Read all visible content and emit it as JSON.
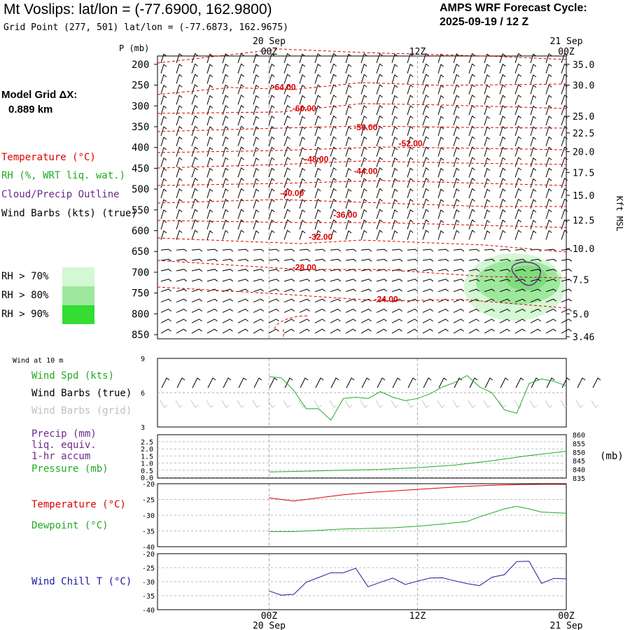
{
  "header": {
    "station_title": "Mt Voslips:  lat/lon = (-77.6900, 162.9800)",
    "grid_point": "Grid Point (277, 501) lat/lon = (-77.6873, 162.9675)",
    "cycle_line1": "AMPS WRF Forecast Cycle:",
    "cycle_line2": "2025-09-19 / 12  Z"
  },
  "model_grid": {
    "label": "Model Grid ΔX:",
    "value": "0.889 km"
  },
  "colors": {
    "temperature": "#dd0000",
    "rh": "#22aa22",
    "cloud": "#6a2a8a",
    "wind_true": "#000000",
    "wind_grid": "#b8b8b8",
    "windchill": "#1a1aa0",
    "rh70": "#d4f7d4",
    "rh80": "#9ee89e",
    "rh90": "#33dd33"
  },
  "legend": {
    "temperature": "Temperature (°C)",
    "rh": "RH (%, WRT liq. wat.)",
    "cloud": "Cloud/Precip Outline",
    "wind": "Wind Barbs (kts) (true)",
    "rh70": "RH > 70%",
    "rh80": "RH > 80%",
    "rh90": "RH > 90%"
  },
  "time_axis": {
    "top_labels": [
      {
        "line1": "20 Sep",
        "line2": "00Z",
        "frac": 0.273
      },
      {
        "line1": "",
        "line2": "12Z",
        "frac": 0.636
      },
      {
        "line1": "21 Sep",
        "line2": "00Z",
        "frac": 1.0
      }
    ],
    "bottom_labels": [
      {
        "line1": "00Z",
        "line2": "20 Sep",
        "frac": 0.273
      },
      {
        "line1": "12Z",
        "line2": "",
        "frac": 0.636
      },
      {
        "line1": "00Z",
        "line2": "21 Sep",
        "frac": 1.0
      }
    ]
  },
  "sounding": {
    "p_axis_title": "P (mb)",
    "right_axis_title": "Kft MSL",
    "pressure_levels": [
      "200",
      "250",
      "300",
      "350",
      "400",
      "450",
      "500",
      "550",
      "600",
      "650",
      "700",
      "750",
      "800",
      "850"
    ],
    "height_labels": [
      {
        "p": 200,
        "label": "35.0"
      },
      {
        "p": 250,
        "label": "30.0"
      },
      {
        "p": 325,
        "label": "25.0"
      },
      {
        "p": 365,
        "label": "22.5"
      },
      {
        "p": 410,
        "label": "20.0"
      },
      {
        "p": 460,
        "label": "17.5"
      },
      {
        "p": 515,
        "label": "15.0"
      },
      {
        "p": 575,
        "label": "12.5"
      },
      {
        "p": 643,
        "label": "10.0"
      },
      {
        "p": 718,
        "label": "7.5"
      },
      {
        "p": 800,
        "label": "5.0"
      },
      {
        "p": 855,
        "label": "3.46"
      }
    ],
    "temp_labels": [
      {
        "text": "-64.00",
        "t": 0.28,
        "p": 255
      },
      {
        "text": "-60.00",
        "t": 0.33,
        "p": 306
      },
      {
        "text": "-56.00",
        "t": 0.48,
        "p": 352
      },
      {
        "text": "-52.00",
        "t": 0.59,
        "p": 390
      },
      {
        "text": "-48.00",
        "t": 0.36,
        "p": 428
      },
      {
        "text": "-44.00",
        "t": 0.48,
        "p": 457
      },
      {
        "text": "-40.00",
        "t": 0.3,
        "p": 510
      },
      {
        "text": "-36.00",
        "t": 0.43,
        "p": 562
      },
      {
        "text": "-32.00",
        "t": 0.37,
        "p": 615
      },
      {
        "text": "-28.00",
        "t": 0.33,
        "p": 688
      },
      {
        "text": "-24.00",
        "t": 0.53,
        "p": 765
      }
    ]
  },
  "surface": {
    "wind_at_10m": "Wind at 10 m",
    "wind_spd_label": "Wind Spd (kts)",
    "wind_barbs_true": "Wind Barbs (true)",
    "wind_barbs_grid": "Wind Barbs (grid)",
    "wind_y_ticks": [
      "9",
      "6",
      "3"
    ],
    "precip_label1": "Precip (mm)",
    "precip_label2": "liq. equiv.",
    "precip_label3": "1-hr accum",
    "pressure_label": "Pressure (mb)",
    "pressure_units": "(mb)",
    "precip_ticks": [
      "2.5",
      "2.0",
      "1.5",
      "1.0",
      "0.5",
      "0.0"
    ],
    "pressure_ticks": [
      "860",
      "855",
      "850",
      "845",
      "840",
      "835"
    ],
    "temp_label": "Temperature (°C)",
    "dew_label": "Dewpoint (°C)",
    "temp_ticks": [
      "-20",
      "-25",
      "-30",
      "-35",
      "-40"
    ],
    "windchill_label": "Wind Chill T (°C)",
    "windchill_ticks": [
      "-20",
      "-25",
      "-30",
      "-35",
      "-40"
    ]
  },
  "chart_data": [
    {
      "type": "line",
      "title": "Wind at 10 m - Wind Spd (kts)",
      "ylim": [
        3,
        9
      ],
      "x_hours": [
        0,
        2,
        4,
        6,
        8,
        10,
        12,
        14,
        16,
        18,
        20,
        22,
        24,
        26,
        28,
        30,
        32,
        34,
        36,
        38,
        40,
        42,
        44,
        46,
        48
      ],
      "values": [
        7.4,
        7.3,
        6.2,
        4.6,
        4.6,
        3.6,
        5.5,
        5.6,
        5.5,
        6.1,
        5.6,
        5.3,
        5.5,
        5.9,
        6.5,
        6.9,
        7.5,
        6.5,
        6.0,
        4.5,
        4.2,
        6.8,
        7.2,
        7.0,
        6.6
      ]
    },
    {
      "type": "line",
      "title": "Pressure (mb)",
      "ylim": [
        835,
        860
      ],
      "x_hours": [
        0,
        6,
        12,
        18,
        24,
        30,
        36,
        42,
        48
      ],
      "values": [
        838.5,
        839.0,
        839.5,
        840.0,
        841.0,
        842.5,
        845.0,
        848.0,
        850.5
      ]
    },
    {
      "type": "line",
      "title": "Temperature / Dewpoint (°C)",
      "ylim": [
        -40,
        -20
      ],
      "series": [
        {
          "name": "Temperature",
          "x_hours": [
            0,
            4,
            8,
            12,
            16,
            20,
            24,
            28,
            32,
            36,
            40,
            44,
            48
          ],
          "values": [
            -24.5,
            -25.5,
            -24.5,
            -23.5,
            -22.8,
            -22.3,
            -21.8,
            -21.3,
            -20.8,
            -20.5,
            -20.3,
            -20.2,
            -20.2
          ]
        },
        {
          "name": "Dewpoint",
          "x_hours": [
            0,
            4,
            8,
            12,
            16,
            20,
            24,
            28,
            32,
            34,
            38,
            40,
            42,
            44,
            48
          ],
          "values": [
            -35.2,
            -35.2,
            -34.8,
            -34.4,
            -34.2,
            -34.0,
            -33.5,
            -32.8,
            -32.0,
            -30.5,
            -28.0,
            -27.2,
            -28.0,
            -29.0,
            -29.4
          ]
        }
      ]
    },
    {
      "type": "line",
      "title": "Wind Chill T (°C)",
      "ylim": [
        -40,
        -20
      ],
      "x_hours": [
        0,
        2,
        4,
        6,
        8,
        10,
        12,
        14,
        16,
        18,
        20,
        22,
        24,
        26,
        28,
        30,
        32,
        34,
        36,
        38,
        40,
        42,
        44,
        46,
        48
      ],
      "values": [
        -33.3,
        -34.8,
        -34.5,
        -30.2,
        -28.5,
        -26.8,
        -26.8,
        -25.2,
        -31.8,
        -30.2,
        -28.7,
        -31.0,
        -29.8,
        -28.7,
        -28.6,
        -29.7,
        -30.7,
        -31.4,
        -28.4,
        -27.5,
        -22.8,
        -22.7,
        -30.6,
        -28.8,
        -29.0
      ]
    }
  ]
}
